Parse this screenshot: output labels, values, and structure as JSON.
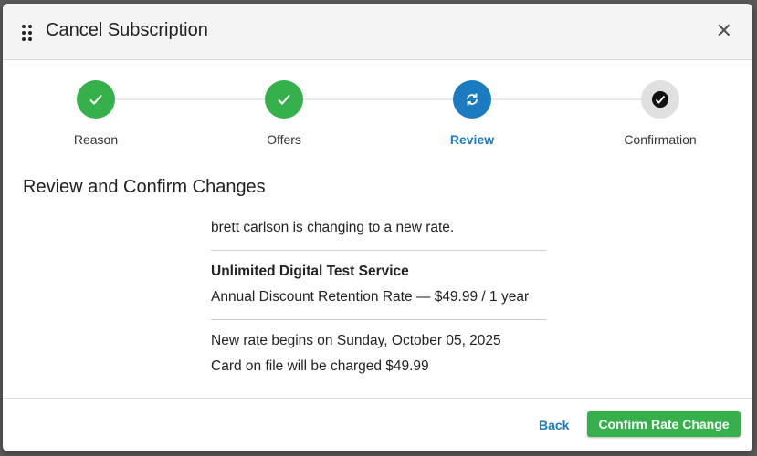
{
  "dialog": {
    "title": "Cancel Subscription"
  },
  "steps": [
    {
      "label": "Reason",
      "state": "complete",
      "icon": "check-icon"
    },
    {
      "label": "Offers",
      "state": "complete",
      "icon": "check-icon"
    },
    {
      "label": "Review",
      "state": "active",
      "icon": "refresh-icon"
    },
    {
      "label": "Confirmation",
      "state": "pending",
      "icon": "check-circle-icon"
    }
  ],
  "colors": {
    "complete": "#35b04a",
    "active": "#1a7bc0",
    "pending": "#e0e0e0"
  },
  "main": {
    "heading": "Review and Confirm Changes",
    "intro": "brett carlson is changing to a new rate.",
    "service": "Unlimited Digital Test Service",
    "rate": "Annual Discount Retention Rate — $49.99 / 1 year",
    "begins": "New rate begins on Sunday, October 05, 2025",
    "charge": "Card on file will be charged $49.99"
  },
  "footer": {
    "back_label": "Back",
    "confirm_label": "Confirm Rate Change"
  }
}
